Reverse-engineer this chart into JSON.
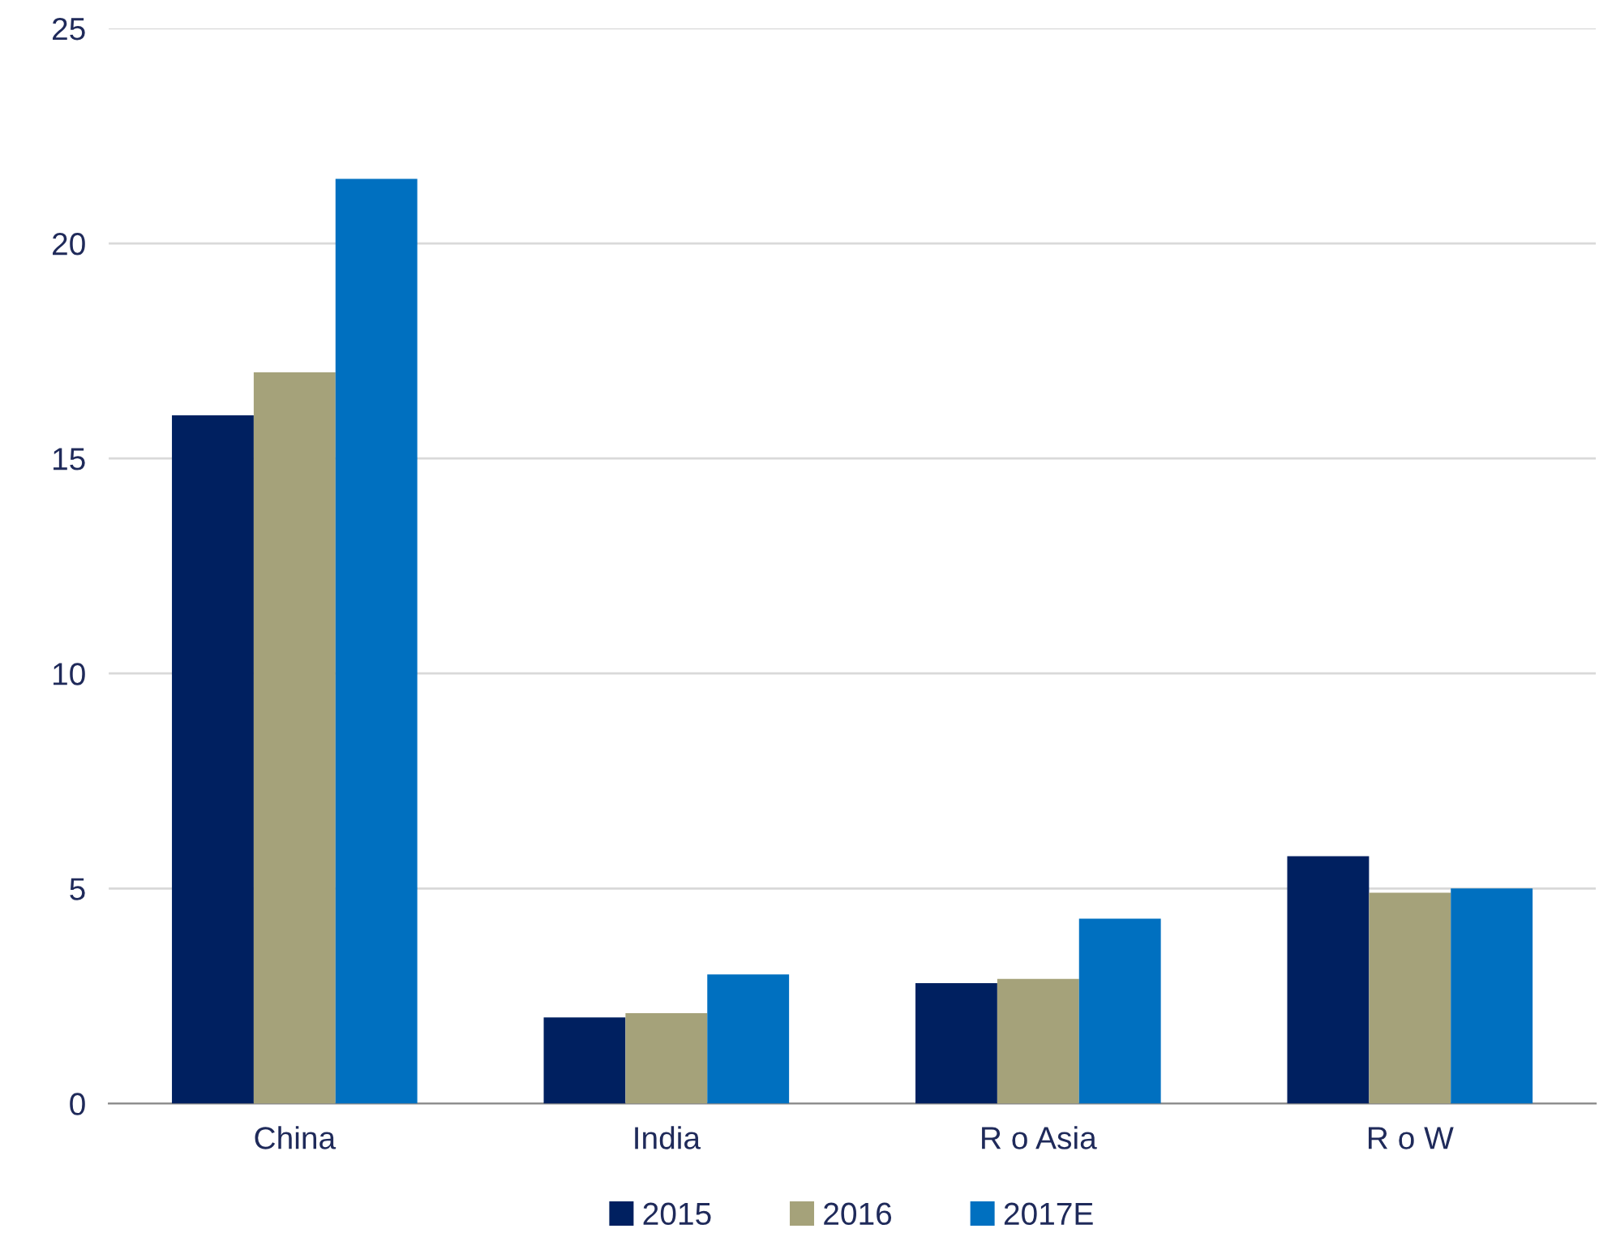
{
  "chart_data": {
    "type": "bar",
    "categories": [
      "China",
      "India",
      "R o Asia",
      "R o W"
    ],
    "series": [
      {
        "name": "2015",
        "color": "#002060",
        "values": [
          16,
          2.0,
          2.8,
          5.75
        ]
      },
      {
        "name": "2016",
        "color": "#a5a27a",
        "values": [
          17,
          2.1,
          2.9,
          4.9
        ]
      },
      {
        "name": "2017E",
        "color": "#0070c0",
        "values": [
          21.5,
          3.0,
          4.3,
          5.0
        ]
      }
    ],
    "ylim": [
      0,
      25
    ],
    "yticks": [
      0,
      5,
      10,
      15,
      20,
      25
    ],
    "grid": "y",
    "legend": "bottom"
  }
}
